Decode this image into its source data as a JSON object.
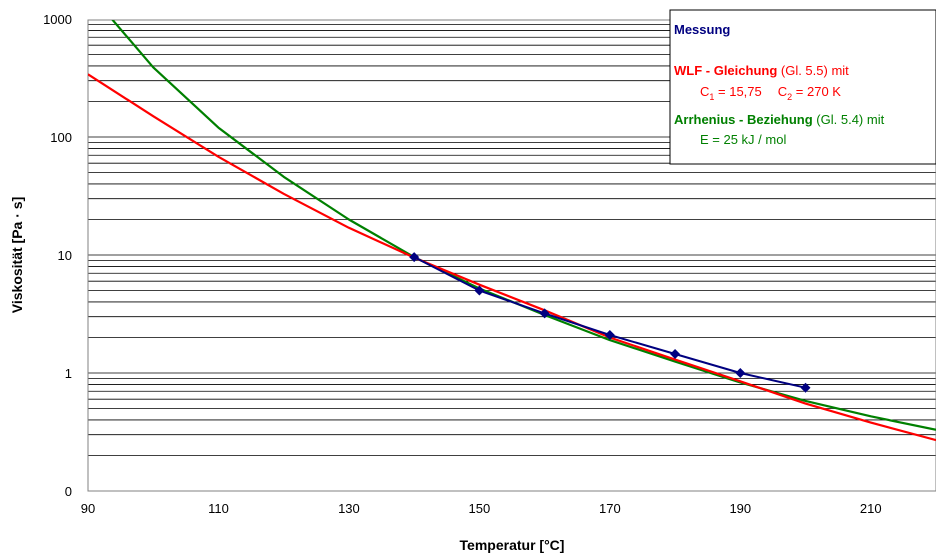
{
  "chart_data": {
    "type": "line",
    "xlabel": "Temperatur [°C]",
    "ylabel": "Viskosität [Pa · s]",
    "x_ticks": [
      90,
      110,
      130,
      150,
      170,
      190,
      210
    ],
    "y_tick_labels": [
      "0",
      "1",
      "10",
      "100",
      "1000"
    ],
    "y_scale": "log",
    "xlim": [
      90,
      220
    ],
    "grid": "horizontal minor log gridlines",
    "legend_position": "top-right",
    "series": [
      {
        "name": "Messung",
        "color": "#000080",
        "marker": "diamond",
        "x": [
          140,
          150,
          160,
          170,
          180,
          190,
          200
        ],
        "y": [
          9.6,
          5.0,
          3.2,
          2.1,
          1.45,
          1.0,
          0.75
        ]
      },
      {
        "name": "WLF - Gleichung",
        "color": "#ff0000",
        "x": [
          90,
          100,
          110,
          120,
          130,
          140,
          150,
          160,
          170,
          180,
          190,
          200,
          210,
          220
        ],
        "y": [
          340,
          150,
          68,
          33,
          17,
          9.5,
          5.6,
          3.4,
          2.0,
          1.3,
          0.85,
          0.55,
          0.38,
          0.27
        ]
      },
      {
        "name": "Arrhenius - Beziehung",
        "color": "#008000",
        "x": [
          93,
          100,
          110,
          120,
          130,
          140,
          150,
          160,
          170,
          180,
          190,
          200,
          210,
          220
        ],
        "y": [
          1100,
          390,
          120,
          46,
          20,
          9.6,
          5.2,
          3.1,
          1.9,
          1.25,
          0.83,
          0.58,
          0.43,
          0.33
        ]
      }
    ],
    "legend": {
      "messung": "Messung",
      "wlf_name": "WLF - Gleichung",
      "wlf_ref": " (Gl. 5.5) mit",
      "wlf_c1_label": "C",
      "wlf_c1_sub": "1",
      "wlf_c1_value": " = 15,75",
      "wlf_c2_label": "C",
      "wlf_c2_sub": "2",
      "wlf_c2_value": " = 270 K",
      "arr_name": "Arrhenius - Beziehung",
      "arr_ref": " (Gl. 5.4) mit",
      "arr_param": "E = 25 kJ / mol"
    }
  }
}
